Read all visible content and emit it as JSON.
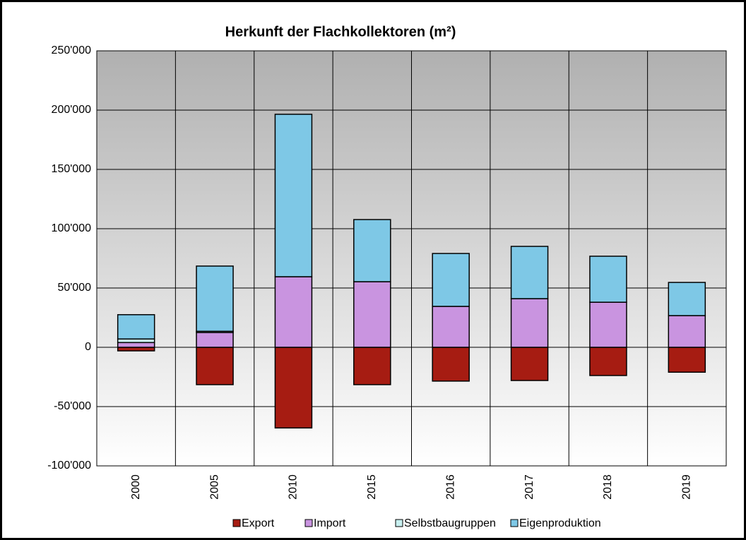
{
  "chart_data": {
    "type": "stacked_bar",
    "title": "Herkunft der Flachkollektoren (m²)",
    "categories": [
      "2000",
      "2005",
      "2010",
      "2015",
      "2016",
      "2017",
      "2018",
      "2019"
    ],
    "series": [
      {
        "name": "Export",
        "color": "#a61c12",
        "values": [
          -3000,
          -31500,
          -68000,
          -31500,
          -28500,
          -28000,
          -23800,
          -21000
        ]
      },
      {
        "name": "Import",
        "color": "#c994e0",
        "values": [
          4000,
          12500,
          59500,
          55300,
          34500,
          41000,
          38000,
          26700
        ]
      },
      {
        "name": "Selbstbaugruppen",
        "color": "#c8f0f0",
        "values": [
          3000,
          1000,
          0,
          0,
          0,
          0,
          0,
          0
        ]
      },
      {
        "name": "Eigenproduktion",
        "color": "#7ec8e6",
        "values": [
          20500,
          55000,
          137000,
          52400,
          44600,
          44100,
          38800,
          28000
        ]
      }
    ],
    "ylim": [
      -100000,
      250000
    ],
    "yticks": [
      {
        "value": -100000,
        "label": "-100'000"
      },
      {
        "value": -50000,
        "label": "-50'000"
      },
      0,
      {
        "value": 50000,
        "label": "50'000"
      },
      {
        "value": 100000,
        "label": "100'000"
      },
      {
        "value": 150000,
        "label": "150'000"
      },
      {
        "value": 200000,
        "label": "200'000"
      },
      {
        "value": 250000,
        "label": "250'000"
      }
    ],
    "grid": true
  }
}
